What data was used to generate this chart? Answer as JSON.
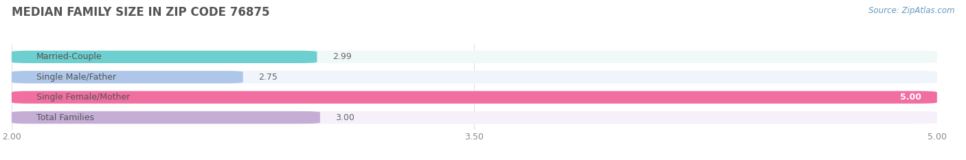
{
  "title": "MEDIAN FAMILY SIZE IN ZIP CODE 76875",
  "source": "Source: ZipAtlas.com",
  "categories": [
    "Married-Couple",
    "Single Male/Father",
    "Single Female/Mother",
    "Total Families"
  ],
  "values": [
    2.99,
    2.75,
    5.0,
    3.0
  ],
  "bar_colors": [
    "#6dcfcf",
    "#aec6e8",
    "#f06fa0",
    "#c4aed6"
  ],
  "bar_bg_colors": [
    "#f0f8f8",
    "#f0f4fb",
    "#fdf0f6",
    "#f6f0fb"
  ],
  "value_labels": [
    "2.99",
    "2.75",
    "5.00",
    "3.00"
  ],
  "value_inside": [
    false,
    false,
    true,
    false
  ],
  "xlim": [
    2.0,
    5.0
  ],
  "xticks": [
    2.0,
    3.5,
    5.0
  ],
  "xtick_labels": [
    "2.00",
    "3.50",
    "5.00"
  ],
  "title_fontsize": 12,
  "source_fontsize": 8.5,
  "label_fontsize": 9,
  "value_fontsize": 9,
  "background_color": "#ffffff",
  "grid_color": "#e0e0e0"
}
